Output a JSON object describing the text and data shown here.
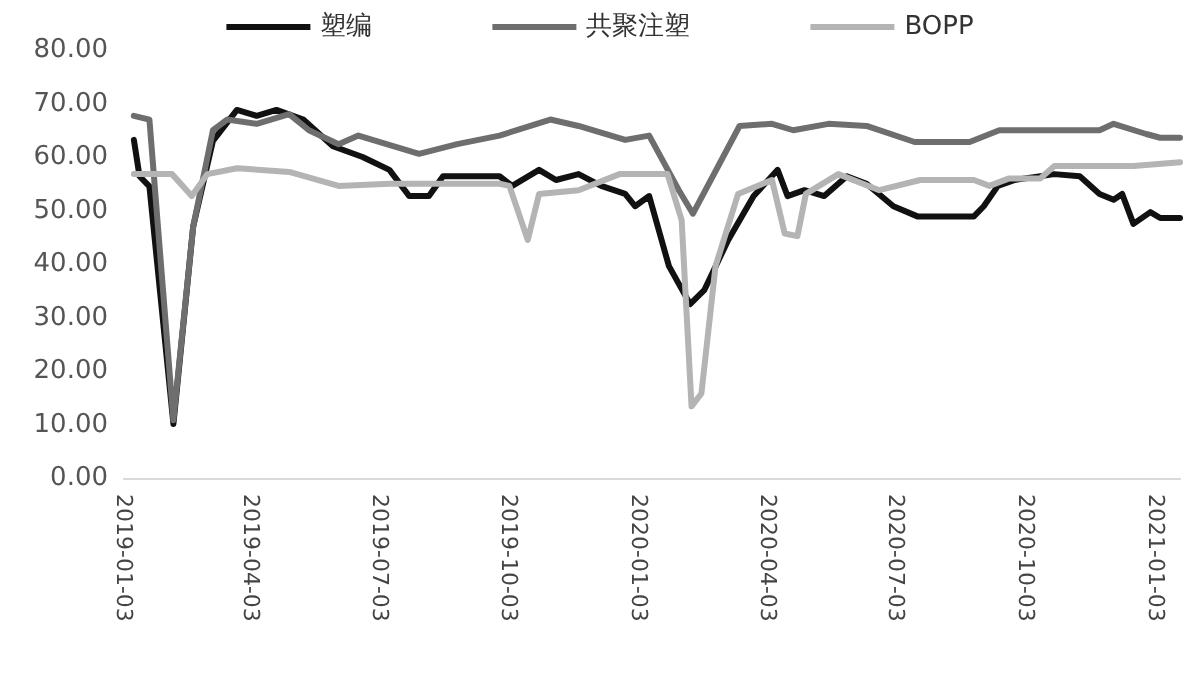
{
  "chart_data": {
    "type": "line",
    "legend": "top",
    "xlim": [
      "2019-01-03",
      "2021-01-20"
    ],
    "xticks": [
      "2019-01-03",
      "2019-04-03",
      "2019-07-03",
      "2019-10-03",
      "2020-01-03",
      "2020-04-03",
      "2020-07-03",
      "2020-10-03",
      "2021-01-03"
    ],
    "ylim": [
      0,
      80
    ],
    "yticks": [
      {
        "value": 0,
        "label": "0.00"
      },
      {
        "value": 10,
        "label": "10.00"
      },
      {
        "value": 20,
        "label": "20.00"
      },
      {
        "value": 30,
        "label": "30.00"
      },
      {
        "value": 40,
        "label": "40.00"
      },
      {
        "value": 50,
        "label": "50.00"
      },
      {
        "value": 60,
        "label": "60.00"
      },
      {
        "value": 70,
        "label": "70.00"
      },
      {
        "value": 80,
        "label": "80.00"
      }
    ],
    "grid": false,
    "marker": "none",
    "line_style": "solid",
    "series": [
      {
        "name": "塑编",
        "color": "#111111",
        "x": [
          "2019-01-10",
          "2019-01-14",
          "2019-01-21",
          "2019-02-07",
          "2019-02-21",
          "2019-03-07",
          "2019-03-24",
          "2019-04-07",
          "2019-04-21",
          "2019-05-10",
          "2019-05-31",
          "2019-06-21",
          "2019-07-10",
          "2019-07-24",
          "2019-08-07",
          "2019-08-17",
          "2019-09-26",
          "2019-10-05",
          "2019-10-24",
          "2019-11-05",
          "2019-11-21",
          "2019-12-07",
          "2019-12-24",
          "2019-12-31",
          "2020-01-10",
          "2020-01-24",
          "2020-02-08",
          "2020-02-18",
          "2020-03-06",
          "2020-03-24",
          "2020-04-10",
          "2020-04-17",
          "2020-04-29",
          "2020-05-13",
          "2020-05-29",
          "2020-06-12",
          "2020-07-01",
          "2020-07-18",
          "2020-08-27",
          "2020-09-03",
          "2020-09-13",
          "2020-09-25",
          "2020-10-23",
          "2020-11-10",
          "2020-11-24",
          "2020-12-04",
          "2020-12-10",
          "2020-12-18",
          "2020-12-30",
          "2021-01-06",
          "2021-01-20"
        ],
        "values": [
          63.2,
          56.4,
          54.5,
          10.1,
          47,
          63,
          68.8,
          67.7,
          68.8,
          67,
          62,
          60,
          57.6,
          52.7,
          52.7,
          56.4,
          56.4,
          54.6,
          57.6,
          55.7,
          56.8,
          54.6,
          53.1,
          50.8,
          52.7,
          39.6,
          32.5,
          35.1,
          44.5,
          52.7,
          57.6,
          52.7,
          53.8,
          52.7,
          56.4,
          55,
          50.8,
          48.9,
          48.9,
          50.8,
          54.6,
          55.7,
          56.8,
          56.4,
          53.1,
          52,
          53.1,
          47.5,
          49.7,
          48.6,
          48.6
        ]
      },
      {
        "name": "共聚注塑",
        "color": "#6e6e6e",
        "x": [
          "2019-01-10",
          "2019-01-21",
          "2019-02-07",
          "2019-02-21",
          "2019-03-07",
          "2019-03-17",
          "2019-04-07",
          "2019-04-30",
          "2019-05-14",
          "2019-06-04",
          "2019-06-18",
          "2019-07-31",
          "2019-08-27",
          "2019-09-26",
          "2019-11-01",
          "2019-11-21",
          "2019-12-24",
          "2020-01-10",
          "2020-01-31",
          "2020-02-10",
          "2020-03-14",
          "2020-04-06",
          "2020-04-21",
          "2020-05-16",
          "2020-06-12",
          "2020-07-16",
          "2020-08-24",
          "2020-09-14",
          "2020-11-24",
          "2020-12-04",
          "2020-12-27",
          "2021-01-06",
          "2021-01-20"
        ],
        "values": [
          67.7,
          67,
          10.8,
          47,
          65,
          67,
          66.2,
          68,
          65,
          62.4,
          64,
          60.6,
          62.4,
          64,
          67,
          65.8,
          63.2,
          64,
          53.8,
          49.4,
          65.8,
          66.2,
          65,
          66.2,
          65.8,
          62.8,
          62.8,
          65,
          65,
          66.2,
          64.3,
          63.6,
          63.6
        ]
      },
      {
        "name": "BOPP",
        "color": "#b4b4b4",
        "x": [
          "2019-01-10",
          "2019-02-06",
          "2019-02-20",
          "2019-03-03",
          "2019-03-24",
          "2019-04-30",
          "2019-06-04",
          "2019-07-10",
          "2019-09-26",
          "2019-10-03",
          "2019-10-16",
          "2019-10-24",
          "2019-11-21",
          "2019-12-20",
          "2020-01-23",
          "2020-02-02",
          "2020-02-09",
          "2020-02-16",
          "2020-02-26",
          "2020-03-13",
          "2020-04-06",
          "2020-04-15",
          "2020-04-24",
          "2020-04-30",
          "2020-05-23",
          "2020-06-21",
          "2020-07-20",
          "2020-08-27",
          "2020-09-07",
          "2020-09-21",
          "2020-10-13",
          "2020-10-23",
          "2020-12-18",
          "2021-01-20"
        ],
        "values": [
          56.8,
          56.8,
          52.7,
          56.8,
          57.9,
          57.2,
          54.6,
          55,
          55,
          54.6,
          44.5,
          53.1,
          53.8,
          56.8,
          56.8,
          48.2,
          13.4,
          15.8,
          39.6,
          53.1,
          55.7,
          45.7,
          45.2,
          53.1,
          56.8,
          53.8,
          55.7,
          55.7,
          54.6,
          56,
          56,
          58.3,
          58.3,
          59
        ]
      }
    ]
  }
}
